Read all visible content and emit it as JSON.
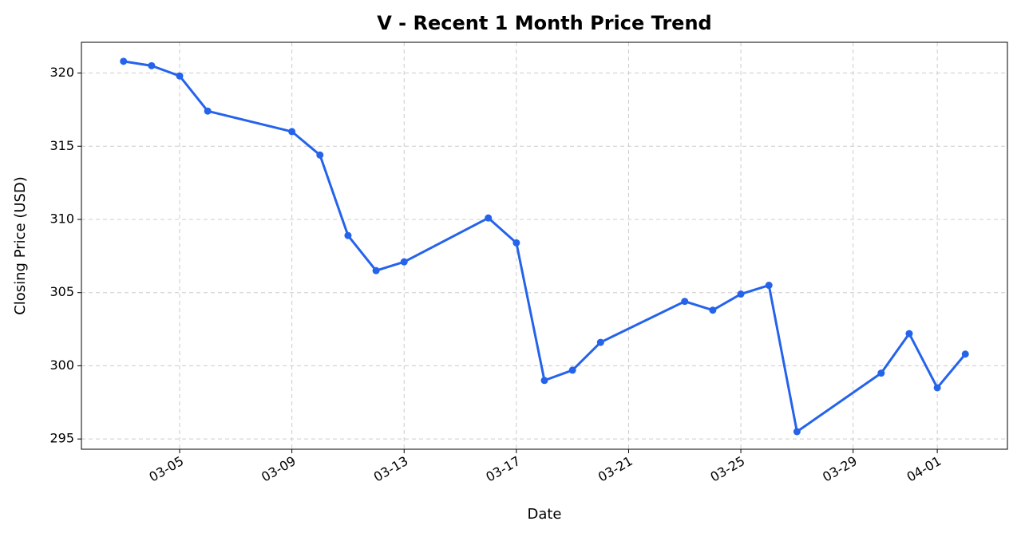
{
  "chart_data": {
    "type": "line",
    "title": "V - Recent 1 Month Price Trend",
    "x_label": "Date",
    "y_label": "Closing Price (USD)",
    "x": [
      "03-03",
      "03-04",
      "03-05",
      "03-06",
      "03-09",
      "03-10",
      "03-11",
      "03-12",
      "03-13",
      "03-16",
      "03-17",
      "03-18",
      "03-19",
      "03-20",
      "03-23",
      "03-24",
      "03-25",
      "03-26",
      "03-27",
      "03-30",
      "03-31",
      "04-01",
      "04-02"
    ],
    "series": [
      {
        "name": "V",
        "color": "#2563eb",
        "values": [
          320.8,
          320.5,
          319.8,
          317.4,
          316.0,
          314.4,
          308.9,
          306.5,
          307.1,
          310.1,
          308.4,
          299.0,
          299.7,
          301.6,
          304.4,
          303.8,
          304.9,
          305.5,
          295.5,
          299.5,
          302.2,
          298.5,
          300.8
        ]
      }
    ],
    "xlim": [
      "03-01 12:00",
      "04-03 12:00"
    ],
    "xticks": [
      "03-05",
      "03-09",
      "03-13",
      "03-17",
      "03-21",
      "03-25",
      "03-29",
      "04-01"
    ],
    "ylim": [
      294.3,
      322.1
    ],
    "yticks": [
      295,
      300,
      305,
      310,
      315,
      320
    ],
    "grid": true
  }
}
